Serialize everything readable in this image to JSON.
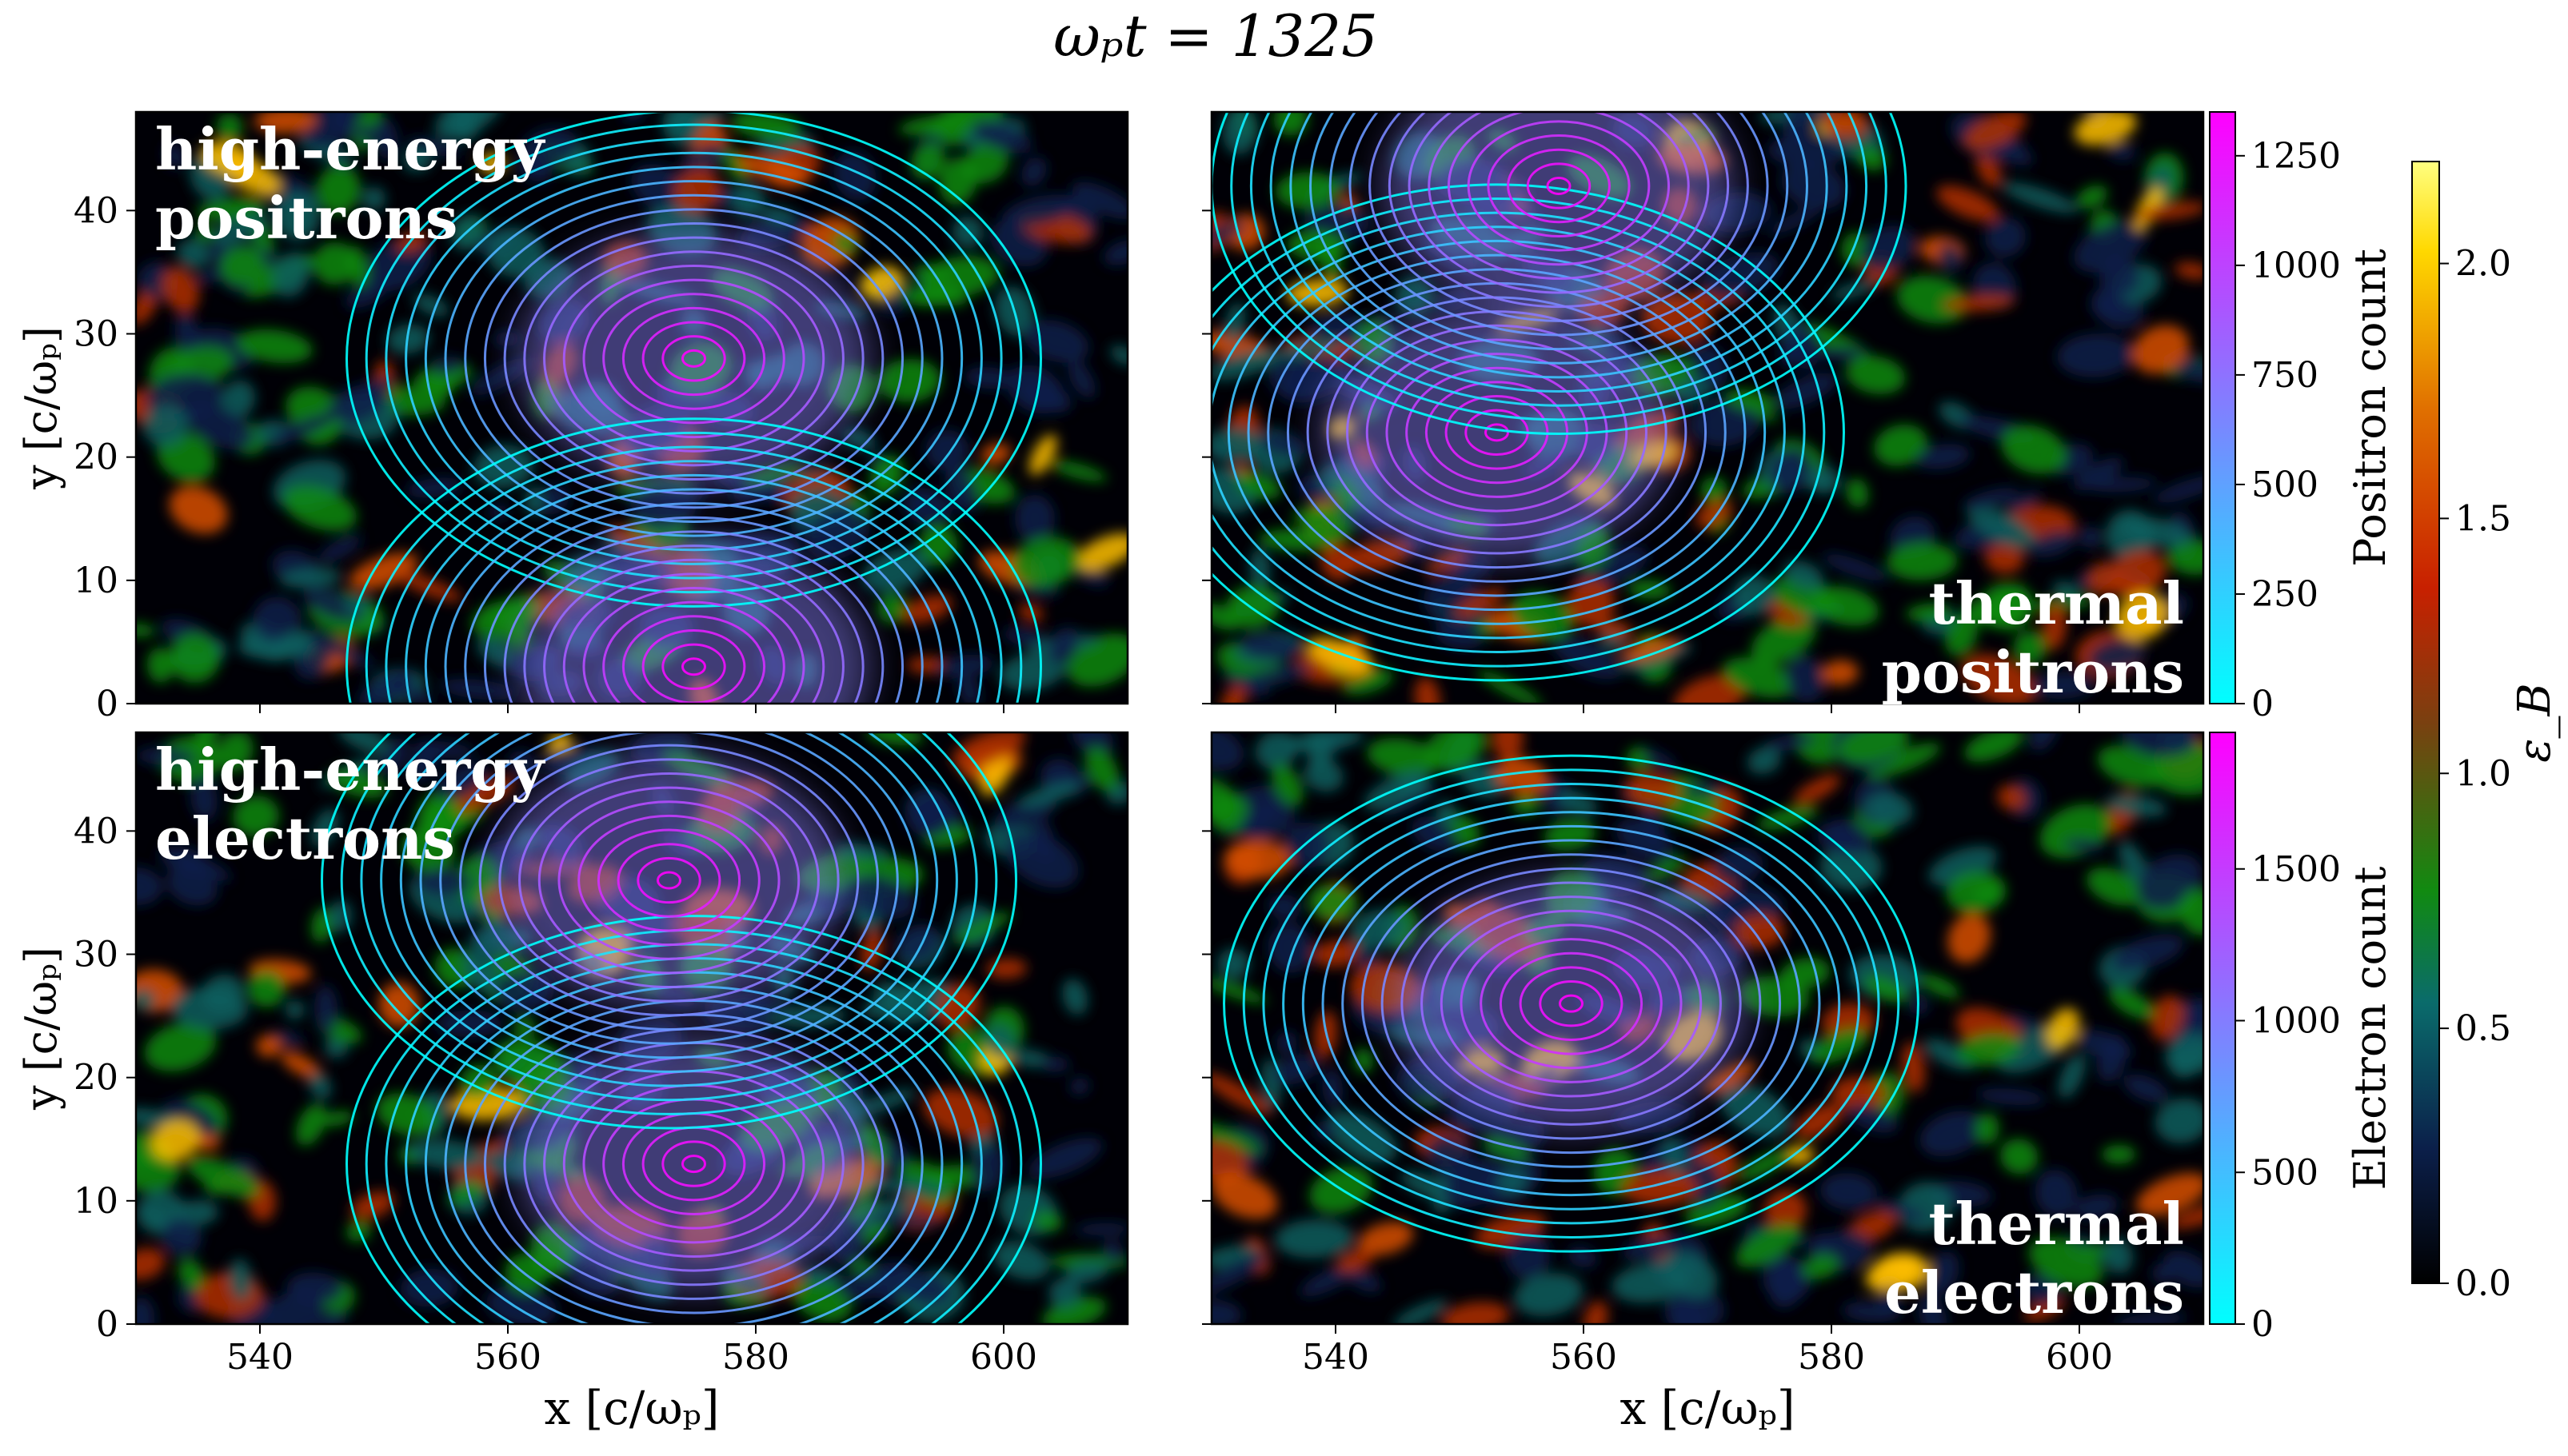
{
  "figure": {
    "title": "ωₚt = 1325",
    "colors": {
      "contour_low": "#00ffff",
      "contour_high": "#ff00ff",
      "field_cmap": [
        "#000000",
        "#0b1f4a",
        "#0a6b6b",
        "#118a11",
        "#b03000",
        "#e06000",
        "#ffe000",
        "#ffff80"
      ]
    }
  },
  "chart_data": [
    {
      "type": "heatmap",
      "panel": "top-left",
      "label_line1": "high-energy",
      "label_line2": "positrons",
      "label_position": "top-left",
      "xlabel": "",
      "ylabel": "y [c/ωₚ]",
      "xlim": [
        530,
        610
      ],
      "ylim": [
        0,
        48
      ],
      "x_ticks": [
        540,
        560,
        580,
        600
      ],
      "y_ticks": [
        0,
        10,
        20,
        30,
        40
      ],
      "x_tick_labels_visible": false,
      "y_tick_labels_visible": true,
      "contour_centers": [
        {
          "x": 575,
          "y": 28
        },
        {
          "x": 575,
          "y": 3
        }
      ]
    },
    {
      "type": "heatmap",
      "panel": "top-right",
      "label_line1": "thermal",
      "label_line2": "positrons",
      "label_position": "bottom-right",
      "xlabel": "",
      "ylabel": "",
      "xlim": [
        530,
        610
      ],
      "ylim": [
        0,
        48
      ],
      "x_ticks": [
        540,
        560,
        580,
        600
      ],
      "y_ticks": [
        0,
        10,
        20,
        30,
        40
      ],
      "x_tick_labels_visible": false,
      "y_tick_labels_visible": false,
      "contour_centers": [
        {
          "x": 553,
          "y": 22
        },
        {
          "x": 558,
          "y": 42
        }
      ]
    },
    {
      "type": "heatmap",
      "panel": "bottom-left",
      "label_line1": "high-energy",
      "label_line2": "electrons",
      "label_position": "top-left",
      "xlabel": "x [c/ωₚ]",
      "ylabel": "y [c/ωₚ]",
      "xlim": [
        530,
        610
      ],
      "ylim": [
        0,
        48
      ],
      "x_ticks": [
        540,
        560,
        580,
        600
      ],
      "y_ticks": [
        0,
        10,
        20,
        30,
        40
      ],
      "x_tick_labels_visible": true,
      "y_tick_labels_visible": true,
      "contour_centers": [
        {
          "x": 575,
          "y": 13
        },
        {
          "x": 573,
          "y": 36
        }
      ]
    },
    {
      "type": "heatmap",
      "panel": "bottom-right",
      "label_line1": "thermal",
      "label_line2": "electrons",
      "label_position": "bottom-right",
      "xlabel": "x [c/ωₚ]",
      "ylabel": "",
      "xlim": [
        530,
        610
      ],
      "ylim": [
        0,
        48
      ],
      "x_ticks": [
        540,
        560,
        580,
        600
      ],
      "y_ticks": [
        0,
        10,
        20,
        30,
        40
      ],
      "x_tick_labels_visible": true,
      "y_tick_labels_visible": false,
      "contour_centers": [
        {
          "x": 559,
          "y": 26
        }
      ]
    }
  ],
  "colorbars": {
    "positron": {
      "label": "Positron count",
      "range": [
        0,
        1350
      ],
      "ticks": [
        0,
        250,
        500,
        750,
        1000,
        1250
      ],
      "cmap": [
        "#00ffff",
        "#8080ff",
        "#ff00ff"
      ]
    },
    "electron": {
      "label": "Electron count",
      "range": [
        0,
        1950
      ],
      "ticks": [
        0,
        500,
        1000,
        1500
      ],
      "cmap": [
        "#00ffff",
        "#8080ff",
        "#ff00ff"
      ]
    },
    "field": {
      "label": "ε_B",
      "range": [
        0,
        2.2
      ],
      "ticks": [
        0.0,
        0.5,
        1.0,
        1.5,
        2.0
      ],
      "tick_labels": [
        "0.0",
        "0.5",
        "1.0",
        "1.5",
        "2.0"
      ]
    }
  }
}
